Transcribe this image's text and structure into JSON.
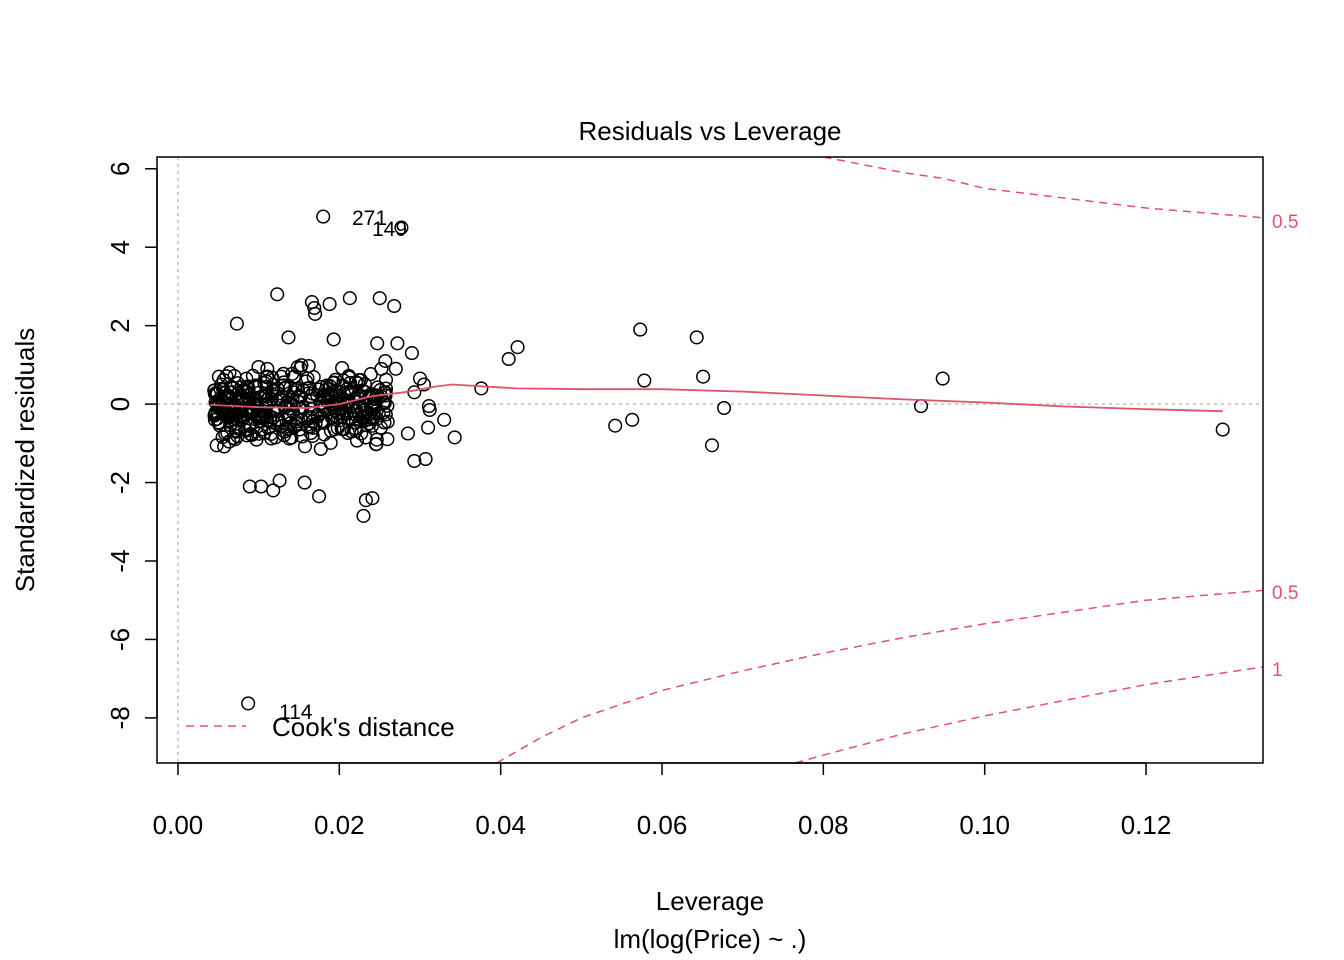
{
  "colors": {
    "accent": "#DF536B",
    "points": "#000000",
    "reference": "#BEBEBE"
  },
  "chart_data": {
    "type": "scatter",
    "title": "Residuals vs Leverage",
    "xlabel": "Leverage",
    "subtitle": "lm(log(Price) ~ .)",
    "ylabel": "Standardized residuals",
    "xlim": [
      -0.0026,
      0.1345
    ],
    "ylim": [
      -9.15,
      6.3
    ],
    "xticks": [
      0.0,
      0.02,
      0.04,
      0.06,
      0.08,
      0.1,
      0.12
    ],
    "xtick_labels": [
      "0.00",
      "0.02",
      "0.04",
      "0.06",
      "0.08",
      "0.10",
      "0.12"
    ],
    "yticks": [
      -8,
      -6,
      -4,
      -2,
      0,
      2,
      4,
      6
    ],
    "ytick_labels": [
      "-8",
      "-6",
      "-4",
      "-2",
      "0",
      "2",
      "4",
      "6"
    ],
    "legend": {
      "label": "Cook's distance",
      "position": "bottom-left"
    },
    "labeled_points": [
      {
        "label": "271",
        "x": 0.018,
        "y": 4.78
      },
      {
        "label": "149",
        "x": 0.0277,
        "y": 4.5
      },
      {
        "label": "114",
        "x": 0.0087,
        "y": -7.63
      }
    ],
    "outer_points": [
      [
        0.0073,
        2.05
      ],
      [
        0.0123,
        2.8
      ],
      [
        0.0166,
        2.6
      ],
      [
        0.0169,
        2.45
      ],
      [
        0.017,
        2.3
      ],
      [
        0.0188,
        2.55
      ],
      [
        0.0213,
        2.7
      ],
      [
        0.025,
        2.7
      ],
      [
        0.0268,
        2.5
      ],
      [
        0.0137,
        1.7
      ],
      [
        0.0193,
        1.65
      ],
      [
        0.0247,
        1.55
      ],
      [
        0.0272,
        1.55
      ],
      [
        0.029,
        1.3
      ],
      [
        0.0293,
        0.3
      ],
      [
        0.03,
        0.65
      ],
      [
        0.0305,
        0.5
      ],
      [
        0.0311,
        -0.05
      ],
      [
        0.0312,
        -0.15
      ],
      [
        0.031,
        -0.6
      ],
      [
        0.0293,
        -1.45
      ],
      [
        0.0307,
        -1.4
      ],
      [
        0.033,
        -0.4
      ],
      [
        0.0343,
        -0.85
      ],
      [
        0.0376,
        0.4
      ],
      [
        0.041,
        1.15
      ],
      [
        0.0421,
        1.45
      ],
      [
        0.0542,
        -0.55
      ],
      [
        0.0563,
        -0.4
      ],
      [
        0.0573,
        1.9
      ],
      [
        0.0578,
        0.6
      ],
      [
        0.0643,
        1.7
      ],
      [
        0.0651,
        0.7
      ],
      [
        0.0662,
        -1.05
      ],
      [
        0.0677,
        -0.1
      ],
      [
        0.0921,
        -0.05
      ],
      [
        0.0948,
        0.65
      ],
      [
        0.1295,
        -0.65
      ],
      [
        0.0089,
        -2.1
      ],
      [
        0.0103,
        -2.1
      ],
      [
        0.0118,
        -2.2
      ],
      [
        0.0126,
        -1.95
      ],
      [
        0.0157,
        -2.0
      ],
      [
        0.0175,
        -2.35
      ],
      [
        0.023,
        -2.85
      ],
      [
        0.0233,
        -2.45
      ],
      [
        0.0241,
        -2.4
      ],
      [
        0.0045,
        0.35
      ],
      [
        0.0048,
        -1.05
      ],
      [
        0.0052,
        -0.55
      ],
      [
        0.0046,
        -0.25
      ],
      [
        0.026,
        -0.45
      ],
      [
        0.0285,
        -0.75
      ],
      [
        0.027,
        0.9
      ],
      [
        0.0257,
        1.1
      ]
    ],
    "cluster": {
      "count": 420,
      "x_range": [
        0.0045,
        0.026
      ],
      "y_sd": 0.75,
      "y_range": [
        -1.9,
        1.5
      ],
      "seed": 7
    },
    "smooth_line": [
      [
        0.004,
        -0.02
      ],
      [
        0.01,
        -0.08
      ],
      [
        0.016,
        -0.1
      ],
      [
        0.02,
        0.0
      ],
      [
        0.024,
        0.2
      ],
      [
        0.028,
        0.3
      ],
      [
        0.032,
        0.45
      ],
      [
        0.034,
        0.5
      ],
      [
        0.038,
        0.45
      ],
      [
        0.042,
        0.4
      ],
      [
        0.05,
        0.38
      ],
      [
        0.06,
        0.38
      ],
      [
        0.07,
        0.32
      ],
      [
        0.08,
        0.22
      ],
      [
        0.09,
        0.12
      ],
      [
        0.1,
        0.04
      ],
      [
        0.11,
        -0.06
      ],
      [
        0.12,
        -0.13
      ],
      [
        0.1295,
        -0.18
      ]
    ],
    "cooks_contours": [
      {
        "label": "0.5",
        "side": "upper",
        "points": [
          [
            0.08,
            6.3
          ],
          [
            0.085,
            6.1
          ],
          [
            0.09,
            5.9
          ],
          [
            0.095,
            5.75
          ],
          [
            0.1,
            5.5
          ],
          [
            0.11,
            5.25
          ],
          [
            0.12,
            5.0
          ],
          [
            0.1345,
            4.75
          ]
        ]
      },
      {
        "label": "0.5",
        "side": "lower",
        "points": [
          [
            0.0395,
            -9.15
          ],
          [
            0.045,
            -8.5
          ],
          [
            0.05,
            -8.0
          ],
          [
            0.06,
            -7.3
          ],
          [
            0.07,
            -6.8
          ],
          [
            0.08,
            -6.35
          ],
          [
            0.09,
            -5.95
          ],
          [
            0.1,
            -5.6
          ],
          [
            0.11,
            -5.3
          ],
          [
            0.12,
            -5.0
          ],
          [
            0.1345,
            -4.75
          ]
        ]
      },
      {
        "label": "1",
        "side": "lower",
        "points": [
          [
            0.0765,
            -9.15
          ],
          [
            0.08,
            -8.95
          ],
          [
            0.09,
            -8.4
          ],
          [
            0.1,
            -7.95
          ],
          [
            0.11,
            -7.55
          ],
          [
            0.12,
            -7.15
          ],
          [
            0.1345,
            -6.7
          ]
        ]
      }
    ]
  }
}
